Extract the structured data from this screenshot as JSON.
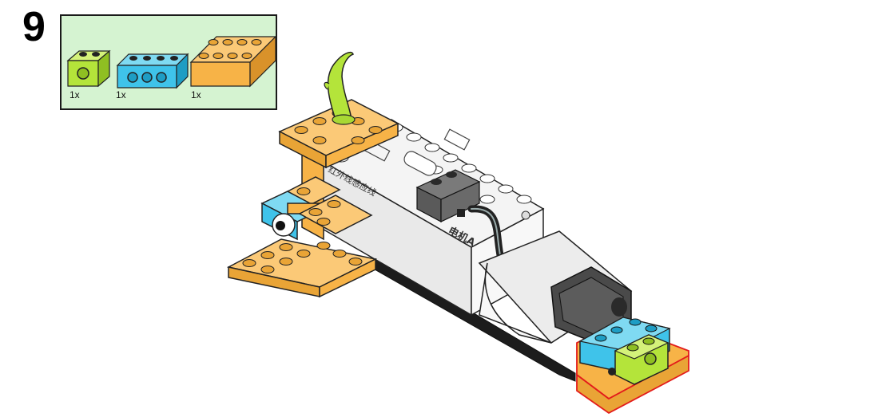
{
  "step": {
    "number": "9"
  },
  "parts": [
    {
      "name": "lime-1x2-beam",
      "color": "#b4e43a",
      "quantity": "1x"
    },
    {
      "name": "azure-1x4-beam",
      "color": "#3fc3ea",
      "quantity": "1x"
    },
    {
      "name": "orange-2x4-brick",
      "color": "#f7b347",
      "quantity": "1x"
    }
  ],
  "model": {
    "hub_label": "红外线感应线",
    "motor_label": "电机A",
    "colors": {
      "orange": "#f7b347",
      "azure": "#3fc3ea",
      "lime": "#b4e43a",
      "white": "#f4f4f4",
      "dark_gray": "#4a4a4a",
      "black": "#1c1c1c",
      "outline": "#222222",
      "highlight": "#e31b1b"
    }
  }
}
